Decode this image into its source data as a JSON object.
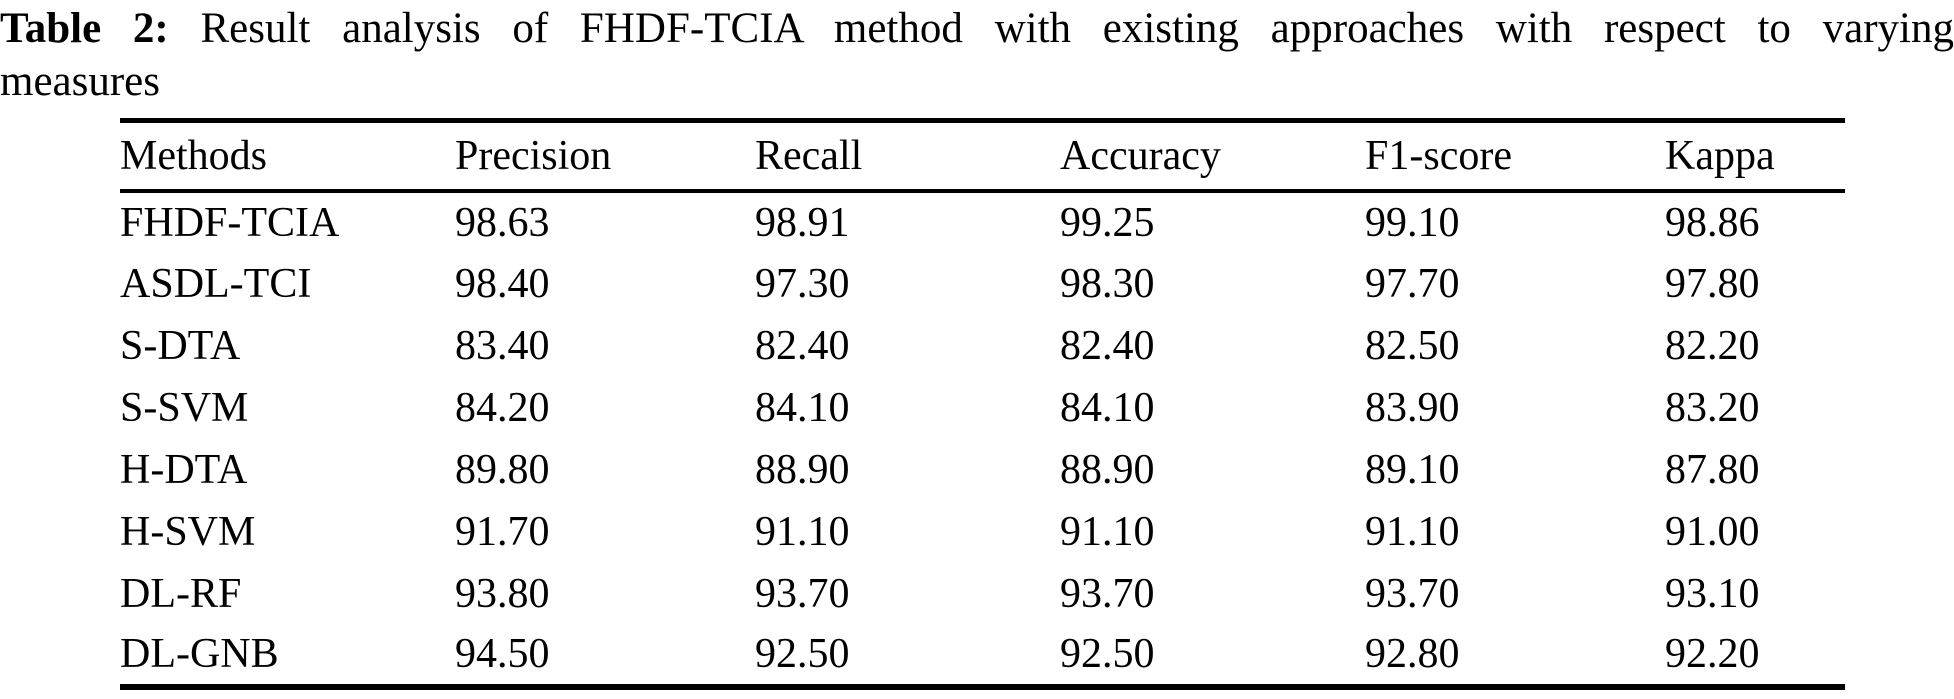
{
  "caption": {
    "label": "Table 2:",
    "line1": " Result analysis of FHDF-TCIA method with existing approaches with respect to varying",
    "line2": "measures"
  },
  "table": {
    "columns": [
      "Methods",
      "Precision",
      "Recall",
      "Accuracy",
      "F1-score",
      "Kappa"
    ],
    "rows": [
      [
        "FHDF-TCIA",
        "98.63",
        "98.91",
        "99.25",
        "99.10",
        "98.86"
      ],
      [
        "ASDL-TCI",
        "98.40",
        "97.30",
        "98.30",
        "97.70",
        "97.80"
      ],
      [
        "S-DTA",
        "83.40",
        "82.40",
        "82.40",
        "82.50",
        "82.20"
      ],
      [
        "S-SVM",
        "84.20",
        "84.10",
        "84.10",
        "83.90",
        "83.20"
      ],
      [
        "H-DTA",
        "89.80",
        "88.90",
        "88.90",
        "89.10",
        "87.80"
      ],
      [
        "H-SVM",
        "91.70",
        "91.10",
        "91.10",
        "91.10",
        "91.00"
      ],
      [
        "DL-RF",
        "93.80",
        "93.70",
        "93.70",
        "93.70",
        "93.10"
      ],
      [
        "DL-GNB",
        "94.50",
        "92.50",
        "92.50",
        "92.80",
        "92.20"
      ]
    ]
  },
  "colors": {
    "text": "#000000",
    "background": "#ffffff",
    "rule": "#000000"
  }
}
